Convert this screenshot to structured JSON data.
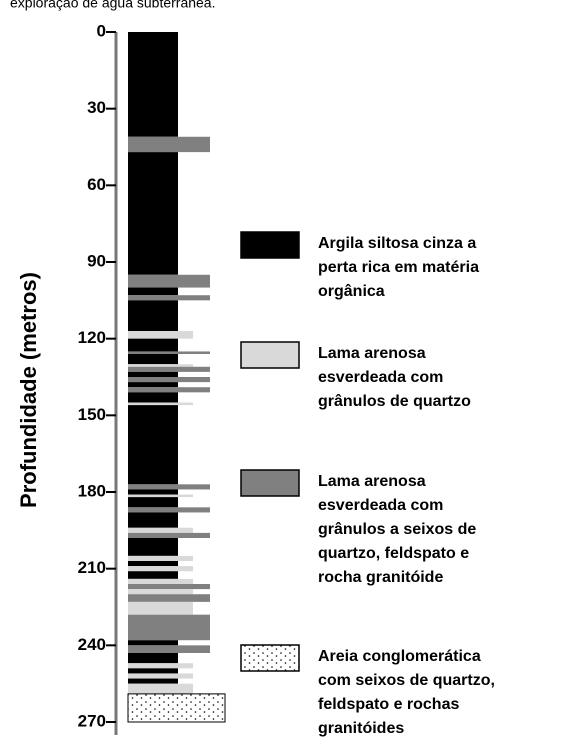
{
  "caption": "exploração de água subterrânea.",
  "axis_label": "Profundidade (metros)",
  "ticks": [
    0,
    30,
    60,
    90,
    120,
    150,
    180,
    210,
    240,
    270
  ],
  "layers": [
    {
      "top": 0,
      "bottom": 41,
      "type": "clay"
    },
    {
      "top": 41,
      "bottom": 47,
      "type": "gravel_mud"
    },
    {
      "top": 47,
      "bottom": 95,
      "type": "clay"
    },
    {
      "top": 95,
      "bottom": 100,
      "type": "gravel_mud"
    },
    {
      "top": 100,
      "bottom": 103,
      "type": "clay"
    },
    {
      "top": 103,
      "bottom": 105,
      "type": "gravel_mud"
    },
    {
      "top": 105,
      "bottom": 117,
      "type": "clay"
    },
    {
      "top": 117,
      "bottom": 120,
      "type": "mud"
    },
    {
      "top": 120,
      "bottom": 125,
      "type": "clay"
    },
    {
      "top": 125,
      "bottom": 126,
      "type": "gravel_mud"
    },
    {
      "top": 126,
      "bottom": 130,
      "type": "clay"
    },
    {
      "top": 130,
      "bottom": 131,
      "type": "mud"
    },
    {
      "top": 131,
      "bottom": 133,
      "type": "gravel_mud"
    },
    {
      "top": 133,
      "bottom": 135,
      "type": "clay"
    },
    {
      "top": 135,
      "bottom": 137,
      "type": "gravel_mud"
    },
    {
      "top": 137,
      "bottom": 139,
      "type": "clay"
    },
    {
      "top": 139,
      "bottom": 141,
      "type": "gravel_mud"
    },
    {
      "top": 141,
      "bottom": 145,
      "type": "clay"
    },
    {
      "top": 145,
      "bottom": 146,
      "type": "mud"
    },
    {
      "top": 146,
      "bottom": 177,
      "type": "clay"
    },
    {
      "top": 177,
      "bottom": 179,
      "type": "gravel_mud"
    },
    {
      "top": 179,
      "bottom": 181,
      "type": "clay"
    },
    {
      "top": 181,
      "bottom": 182,
      "type": "mud"
    },
    {
      "top": 182,
      "bottom": 186,
      "type": "clay"
    },
    {
      "top": 186,
      "bottom": 188,
      "type": "gravel_mud"
    },
    {
      "top": 188,
      "bottom": 194,
      "type": "clay"
    },
    {
      "top": 194,
      "bottom": 196,
      "type": "mud"
    },
    {
      "top": 196,
      "bottom": 198,
      "type": "gravel_mud"
    },
    {
      "top": 198,
      "bottom": 205,
      "type": "clay"
    },
    {
      "top": 205,
      "bottom": 207,
      "type": "mud"
    },
    {
      "top": 207,
      "bottom": 209,
      "type": "clay"
    },
    {
      "top": 209,
      "bottom": 211,
      "type": "mud"
    },
    {
      "top": 211,
      "bottom": 214,
      "type": "clay"
    },
    {
      "top": 214,
      "bottom": 216,
      "type": "mud"
    },
    {
      "top": 216,
      "bottom": 218,
      "type": "gravel_mud"
    },
    {
      "top": 218,
      "bottom": 220,
      "type": "mud"
    },
    {
      "top": 220,
      "bottom": 223,
      "type": "gravel_mud"
    },
    {
      "top": 223,
      "bottom": 228,
      "type": "mud"
    },
    {
      "top": 228,
      "bottom": 238,
      "type": "gravel_mud"
    },
    {
      "top": 238,
      "bottom": 240,
      "type": "clay"
    },
    {
      "top": 240,
      "bottom": 243,
      "type": "gravel_mud"
    },
    {
      "top": 243,
      "bottom": 247,
      "type": "clay"
    },
    {
      "top": 247,
      "bottom": 249,
      "type": "mud"
    },
    {
      "top": 249,
      "bottom": 251,
      "type": "clay"
    },
    {
      "top": 251,
      "bottom": 253,
      "type": "mud"
    },
    {
      "top": 253,
      "bottom": 255,
      "type": "clay"
    },
    {
      "top": 255,
      "bottom": 259,
      "type": "mud"
    },
    {
      "top": 259,
      "bottom": 270,
      "type": "sand"
    }
  ],
  "legend": [
    {
      "type": "clay",
      "lines": [
        "Argila siltosa cinza a",
        "perta rica em matéria",
        "orgânica"
      ]
    },
    {
      "type": "mud",
      "lines": [
        "Lama arenosa",
        "esverdeada com",
        "grânulos de quartzo"
      ]
    },
    {
      "type": "gravel_mud",
      "lines": [
        "Lama arenosa",
        "esverdeada com",
        "grânulos a seixos de",
        "quartzo, feldspato e",
        "rocha granitóide"
      ]
    },
    {
      "type": "sand",
      "lines": [
        "Areia conglomerática",
        "com seixos de quartzo,",
        "feldspato e rochas",
        "granitóides"
      ]
    }
  ]
}
